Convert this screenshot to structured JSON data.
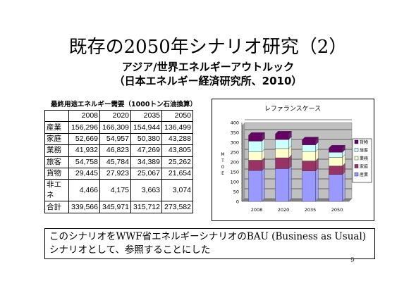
{
  "slide": {
    "title": "既存の2050年シナリオ研究（2）",
    "subtitle1": "アジア/世界エネルギーアウトルック",
    "subtitle2": "（日本エネルギー経済研究所、2010）",
    "table_caption": "最終用途エネルギー需要（1000トン石油換算）",
    "note": "このシナリオをWWF省エネルギーシナリオのBAU (Business as Usual)シナリオとして、参照することにした",
    "page_number": "9"
  },
  "table": {
    "header": [
      "",
      "2008",
      "2020",
      "2035",
      "2050"
    ],
    "rows": [
      [
        "産業",
        "156,296",
        "166,309",
        "154,944",
        "136,499"
      ],
      [
        "家庭",
        "52,669",
        "54,957",
        "50,380",
        "43,288"
      ],
      [
        "業務",
        "41,932",
        "46,823",
        "47,269",
        "43,805"
      ],
      [
        "旅客",
        "54,758",
        "45,784",
        "34,389",
        "25,262"
      ],
      [
        "貨物",
        "29,445",
        "27,923",
        "25,067",
        "21,654"
      ],
      [
        "非エネ",
        "4,466",
        "4,175",
        "3,663",
        "3,074"
      ],
      [
        "合計",
        "339,566",
        "345,971",
        "315,712",
        "273,582"
      ]
    ]
  },
  "chart_data": {
    "type": "bar",
    "stacked": true,
    "title": "レファランスケース",
    "ylabel": "M T O E",
    "categories": [
      "2008",
      "2020",
      "2035",
      "2050"
    ],
    "ylim": [
      0,
      400
    ],
    "yticks": [
      0,
      50,
      100,
      150,
      200,
      250,
      300,
      350,
      400
    ],
    "grid": true,
    "legend_position": "right",
    "series": [
      {
        "name": "産業",
        "color": "#9999ff",
        "values": [
          156.3,
          166.3,
          154.9,
          136.5
        ]
      },
      {
        "name": "家庭",
        "color": "#993366",
        "values": [
          52.7,
          55.0,
          50.4,
          43.3
        ]
      },
      {
        "name": "業務",
        "color": "#ffffcc",
        "values": [
          41.9,
          46.8,
          47.3,
          43.8
        ]
      },
      {
        "name": "旅客",
        "color": "#ccffff",
        "values": [
          54.8,
          45.8,
          34.4,
          25.3
        ]
      },
      {
        "name": "貨物",
        "color": "#660066",
        "values": [
          29.4,
          27.9,
          25.1,
          21.7
        ]
      }
    ]
  }
}
